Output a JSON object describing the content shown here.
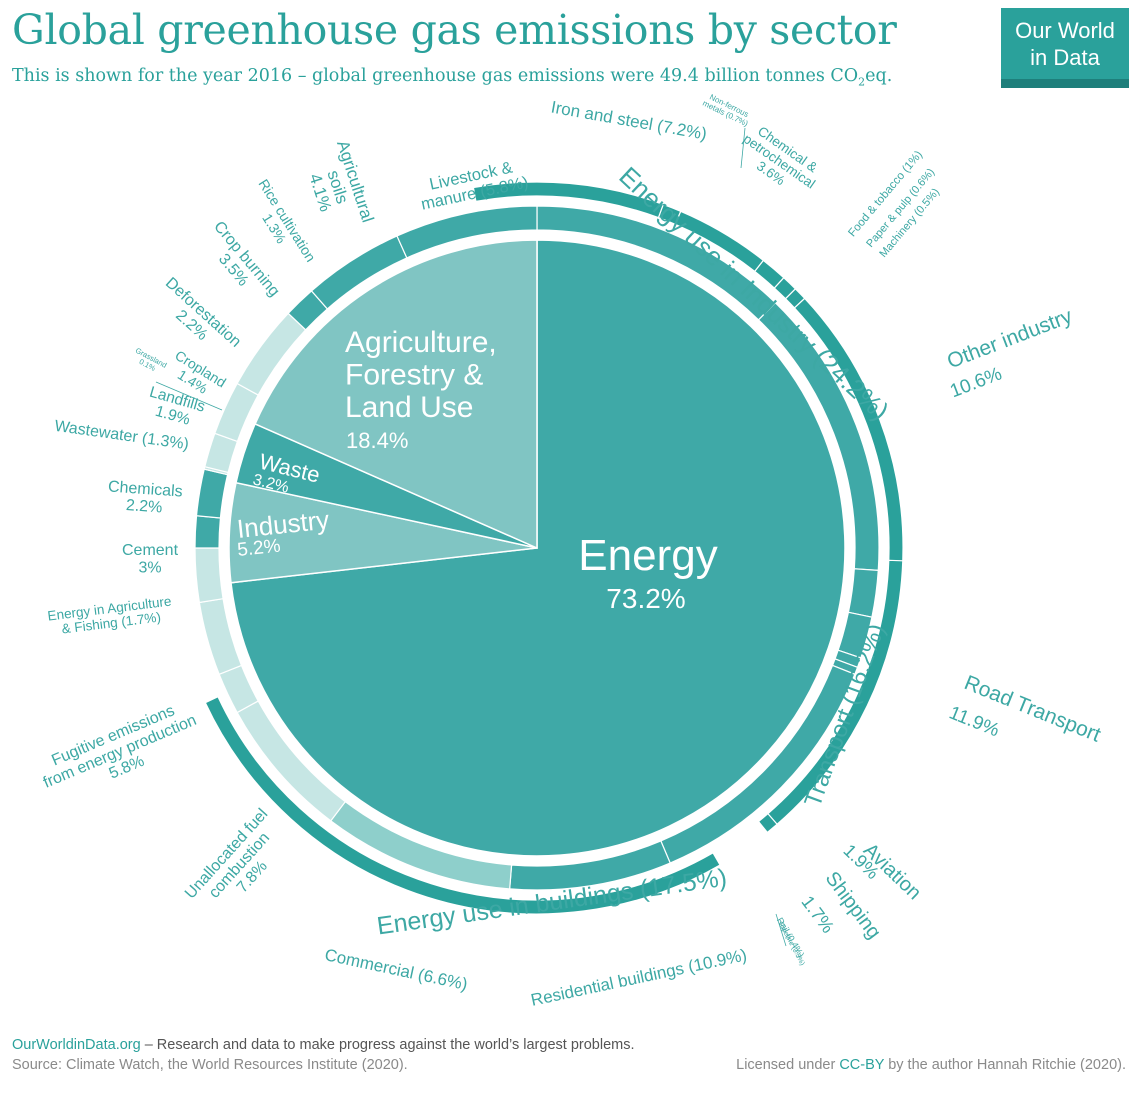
{
  "header": {
    "title": "Global greenhouse gas emissions by sector",
    "subtitle_main": "This is shown for the year 2016 – global greenhouse gas emissions were 49.4 billion tonnes CO",
    "subtitle_sub": "2",
    "subtitle_end": "eq."
  },
  "logo": {
    "line1": "Our World",
    "line2": "in Data"
  },
  "footer": {
    "site": "OurWorldinData.org",
    "tagline": " – Research and data to make progress against the world’s largest problems.",
    "source": "Source: Climate Watch, the World Resources Institute (2020).",
    "license_pre": "Licensed under ",
    "license": "CC-BY",
    "license_post": " by the author Hannah Ritchie  (2020)."
  },
  "colors": {
    "teal": "#3fa9a7",
    "teal_dark": "#2aa19b",
    "ag_sector": "#80c5c3",
    "light": "#8ecfcb",
    "lighter": "#c6e6e4",
    "text": "#3da8a4"
  },
  "chart_data": {
    "type": "pie",
    "start_angle_deg": 0,
    "sectors": [
      {
        "name": "Energy",
        "value": 73.2,
        "label": "73.2%"
      },
      {
        "name": "Industry",
        "value": 5.2,
        "label": "5.2%"
      },
      {
        "name": "Waste",
        "value": 3.2,
        "label": "3.2%"
      },
      {
        "name": "Agriculture, Forestry & Land Use",
        "value": 18.4,
        "label": "18.4%"
      }
    ],
    "subsectors": [
      {
        "sector": "Energy",
        "name": "Other industry",
        "value": 10.6,
        "text": [
          "Other industry",
          "10.6%"
        ]
      },
      {
        "sector": "Energy",
        "name": "Road Transport",
        "value": 11.9,
        "text": [
          "Road Transport",
          "11.9%"
        ]
      },
      {
        "sector": "Energy",
        "name": "Aviation",
        "value": 1.9,
        "text": [
          "Aviation",
          "1.9%"
        ]
      },
      {
        "sector": "Energy",
        "name": "Shipping",
        "value": 1.7,
        "text": [
          "Shipping",
          "1.7%"
        ]
      },
      {
        "sector": "Energy",
        "name": "Rail",
        "value": 0.4,
        "text": [
          "Rail (0.4%)"
        ]
      },
      {
        "sector": "Energy",
        "name": "Pipeline",
        "value": 0.3,
        "text": [
          "Pipeline (0.3%)"
        ]
      },
      {
        "sector": "Energy",
        "name": "Residential buildings",
        "value": 10.9,
        "text": [
          "Residential buildings (10.9%)"
        ]
      },
      {
        "sector": "Energy",
        "name": "Commercial",
        "value": 6.6,
        "text": [
          "Commercial  (6.6%)"
        ]
      },
      {
        "sector": "Energy",
        "name": "Unallocated fuel combustion",
        "value": 7.8,
        "text": [
          "Unallocated fuel",
          "combustion",
          "7.8%"
        ]
      },
      {
        "sector": "Energy",
        "name": "Fugitive emissions from energy production",
        "value": 5.8,
        "text": [
          "Fugitive emissions",
          "from energy production",
          "5.8%"
        ]
      },
      {
        "sector": "Energy",
        "name": "Energy in Agriculture & Fishing",
        "value": 1.7,
        "text": [
          "Energy in Agriculture",
          "& Fishing (1.7%)"
        ]
      },
      {
        "sector": "Industry",
        "name": "Cement",
        "value": 3.0,
        "text": [
          "Cement",
          "3%"
        ]
      },
      {
        "sector": "Industry",
        "name": "Chemicals",
        "value": 2.2,
        "text": [
          "Chemicals",
          "2.2%"
        ]
      },
      {
        "sector": "Waste",
        "name": "Wastewater",
        "value": 1.3,
        "text": [
          "Wastewater (1.3%)"
        ]
      },
      {
        "sector": "Waste",
        "name": "Landfills",
        "value": 1.9,
        "text": [
          "Landfills",
          "1.9%"
        ]
      },
      {
        "sector": "AFOLU",
        "name": "Grassland",
        "value": 0.1,
        "text": [
          "Grassland",
          "0.1%"
        ]
      },
      {
        "sector": "AFOLU",
        "name": "Cropland",
        "value": 1.4,
        "text": [
          "Cropland",
          "1.4%"
        ]
      },
      {
        "sector": "AFOLU",
        "name": "Deforestation",
        "value": 2.2,
        "text": [
          "Deforestation",
          "2.2%"
        ]
      },
      {
        "sector": "AFOLU",
        "name": "Crop burning",
        "value": 3.5,
        "text": [
          "Crop burning",
          "3.5%"
        ]
      },
      {
        "sector": "AFOLU",
        "name": "Rice cultivation",
        "value": 1.3,
        "text": [
          "Rice cultivation",
          "1.3%"
        ]
      },
      {
        "sector": "AFOLU",
        "name": "Agricultural soils",
        "value": 4.1,
        "text": [
          "Agricultural",
          "soils",
          "4.1%"
        ]
      },
      {
        "sector": "AFOLU",
        "name": "Livestock & manure",
        "value": 5.8,
        "text": [
          "Livestock &",
          "manure (5.8%)"
        ]
      }
    ],
    "industry_breakdown": [
      {
        "name": "Iron and steel",
        "value": 7.2,
        "text": [
          "Iron and steel (7.2%)"
        ]
      },
      {
        "name": "Non-ferrous metals",
        "value": 0.7,
        "text": [
          "Non-ferrous",
          "metals (0.7%)"
        ]
      },
      {
        "name": "Chemical & petrochemical",
        "value": 3.6,
        "text": [
          "Chemical &",
          "petrochemical",
          "3.6%"
        ]
      },
      {
        "name": "Food & tobacco",
        "value": 1.0,
        "text": [
          "Food & tobacco (1%)"
        ]
      },
      {
        "name": "Paper & pulp",
        "value": 0.6,
        "text": [
          "Paper & pulp (0.6%)"
        ]
      },
      {
        "name": "Machinery",
        "value": 0.5,
        "text": [
          "Machinery (0.5%)"
        ]
      }
    ],
    "group_labels": [
      {
        "name": "Energy use in Industry",
        "value": 24.2,
        "text": "Energy use in Industry (24.2%)"
      },
      {
        "name": "Transport",
        "value": 16.2,
        "text": "Transport (16.2%)"
      },
      {
        "name": "Energy use in buildings",
        "value": 17.5,
        "text": "Energy use in buildings (17.5%)"
      }
    ]
  }
}
